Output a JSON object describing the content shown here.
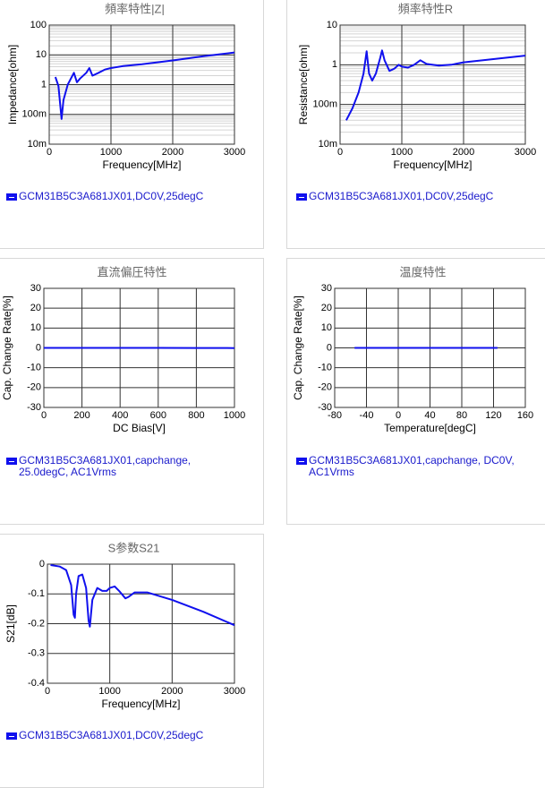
{
  "chart_data": [
    {
      "type": "line",
      "title": "頻率特性|Z|",
      "x_label": "Frequency[MHz]",
      "y_label": "Impedance[ohm]",
      "xlim": [
        0,
        3000
      ],
      "xticks": [
        0,
        1000,
        2000,
        3000
      ],
      "ylim": [
        0.01,
        100
      ],
      "yticks": [
        {
          "value": 0.01,
          "label": "10m"
        },
        {
          "value": 0.1,
          "label": "100m"
        },
        1,
        10,
        100
      ],
      "log_y": true,
      "grid": true,
      "minor_grid": true,
      "x": [
        100,
        150,
        200,
        230,
        300,
        400,
        450,
        500,
        600,
        650,
        700,
        800,
        900,
        1000,
        1200,
        1500,
        2000,
        2500,
        3000
      ],
      "series": [
        {
          "name": "GCM31B5C3A681JX01,DC0V,25degC",
          "color": "#1010ee",
          "values": [
            1.8,
            0.9,
            0.07,
            0.3,
            1,
            2.5,
            1.2,
            1.6,
            2.5,
            3.6,
            2.0,
            2.5,
            3.2,
            3.6,
            4.2,
            4.8,
            6.5,
            9,
            12
          ]
        }
      ]
    },
    {
      "type": "line",
      "title": "頻率特性R",
      "x_label": "Frequency[MHz]",
      "y_label": "Resistance[ohm]",
      "xlim": [
        0,
        3000
      ],
      "xticks": [
        0,
        1000,
        2000,
        3000
      ],
      "ylim": [
        0.01,
        10
      ],
      "yticks": [
        {
          "value": 0.01,
          "label": "10m"
        },
        {
          "value": 0.1,
          "label": "100m"
        },
        1,
        10
      ],
      "log_y": true,
      "grid": true,
      "minor_grid": true,
      "x": [
        100,
        200,
        300,
        380,
        430,
        470,
        520,
        580,
        650,
        680,
        720,
        800,
        880,
        950,
        1000,
        1100,
        1200,
        1300,
        1400,
        1600,
        1800,
        2000,
        2500,
        3000
      ],
      "series": [
        {
          "name": "GCM31B5C3A681JX01,DC0V,25degC",
          "color": "#1010ee",
          "values": [
            0.04,
            0.08,
            0.2,
            0.6,
            2.2,
            0.6,
            0.4,
            0.6,
            1.5,
            2.3,
            1.3,
            0.7,
            0.8,
            1.0,
            0.9,
            0.85,
            1.0,
            1.3,
            1.05,
            0.95,
            1.0,
            1.15,
            1.4,
            1.7
          ]
        }
      ]
    },
    {
      "type": "line",
      "title": "直流偏圧特性",
      "x_label": "DC Bias[V]",
      "y_label": "Cap. Change Rate[%]",
      "xlim": [
        0,
        1000
      ],
      "xticks": [
        0,
        200,
        400,
        600,
        800,
        1000
      ],
      "ylim": [
        -30,
        30
      ],
      "yticks": [
        -30,
        -20,
        -10,
        0,
        10,
        20,
        30
      ],
      "log_y": false,
      "grid": true,
      "minor_grid": false,
      "x": [
        0,
        200,
        400,
        600,
        800,
        1000
      ],
      "series": [
        {
          "name": "GCM31B5C3A681JX01,capchange, 25.0degC, AC1Vrms",
          "color": "#1010ee",
          "values": [
            0,
            0,
            0,
            0,
            -0.05,
            -0.1
          ]
        }
      ]
    },
    {
      "type": "line",
      "title": "温度特性",
      "x_label": "Temperature[degC]",
      "y_label": "Cap. Change Rate[%]",
      "xlim": [
        -80,
        160
      ],
      "xticks": [
        -80,
        -40,
        0,
        40,
        80,
        120,
        160
      ],
      "ylim": [
        -30,
        30
      ],
      "yticks": [
        -30,
        -20,
        -10,
        0,
        10,
        20,
        30
      ],
      "log_y": false,
      "grid": true,
      "minor_grid": false,
      "x": [
        -55,
        0,
        25,
        85,
        125
      ],
      "series": [
        {
          "name": "GCM31B5C3A681JX01,capchange, DC0V, AC1Vrms",
          "color": "#1010ee",
          "values": [
            0,
            0,
            0,
            0,
            0
          ]
        }
      ]
    },
    {
      "type": "line",
      "title": "S参数S21",
      "x_label": "Frequency[MHz]",
      "y_label": "S21[dB]",
      "xlim": [
        0,
        3000
      ],
      "xticks": [
        0,
        1000,
        2000,
        3000
      ],
      "ylim": [
        -0.4,
        0
      ],
      "yticks": [
        -0.4,
        -0.3,
        -0.2,
        -0.1,
        0
      ],
      "log_y": false,
      "grid": true,
      "minor_grid": false,
      "x": [
        50,
        200,
        300,
        380,
        420,
        440,
        460,
        500,
        560,
        620,
        660,
        680,
        720,
        800,
        880,
        950,
        1000,
        1080,
        1150,
        1250,
        1300,
        1400,
        1600,
        2000,
        2500,
        3000
      ],
      "series": [
        {
          "name": "GCM31B5C3A681JX01,DC0V,25degC",
          "color": "#1010ee",
          "values": [
            -0.003,
            -0.008,
            -0.02,
            -0.07,
            -0.17,
            -0.18,
            -0.1,
            -0.04,
            -0.035,
            -0.08,
            -0.19,
            -0.21,
            -0.12,
            -0.08,
            -0.09,
            -0.09,
            -0.08,
            -0.075,
            -0.09,
            -0.115,
            -0.11,
            -0.095,
            -0.095,
            -0.12,
            -0.16,
            -0.205
          ]
        }
      ]
    }
  ]
}
